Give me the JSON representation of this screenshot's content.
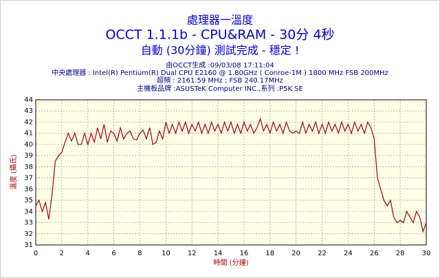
{
  "chart_data": {
    "type": "line",
    "title": "處理器一溫度",
    "subtitle": "OCCT 1.1.1b - CPU&RAM - 30分 4秒",
    "status": "自動 (30分鐘) 測試完成 - 穩定 !",
    "info": [
      "由OCCT生成 :09/03/08 17:11:04",
      "中央處理器 : Intel(R) Pentium(R) Dual CPU E2160 @ 1.80GHz ( Conroe-1M ) 1800 MHz FSB 200MHz",
      "超頻 : 2161.59 MHz ; FSB 240.17MHz",
      "主機板品牌 :ASUSTeK Computer INC.,系列 :P5K SE"
    ],
    "xlabel": "時間 (分鐘)",
    "ylabel": "溫度 (攝氏)",
    "color": "#a00000",
    "grid": true,
    "xlim": [
      0,
      30
    ],
    "xticks": [
      0,
      2,
      4,
      6,
      8,
      10,
      12,
      14,
      16,
      18,
      20,
      22,
      24,
      26,
      28,
      30
    ],
    "ylim": [
      31,
      44
    ],
    "yticks": [
      31,
      32,
      33,
      34,
      35,
      36,
      37,
      38,
      39,
      40,
      41,
      42,
      43,
      44
    ],
    "x": [
      0,
      0.25,
      0.5,
      0.75,
      1,
      1.25,
      1.5,
      1.75,
      2,
      2.25,
      2.5,
      2.75,
      3,
      3.25,
      3.5,
      3.75,
      4,
      4.25,
      4.5,
      4.75,
      5,
      5.25,
      5.5,
      5.75,
      6,
      6.25,
      6.5,
      6.75,
      7,
      7.25,
      7.5,
      7.75,
      8,
      8.25,
      8.5,
      8.75,
      9,
      9.25,
      9.5,
      9.75,
      10,
      10.25,
      10.5,
      10.75,
      11,
      11.25,
      11.5,
      11.75,
      12,
      12.25,
      12.5,
      12.75,
      13,
      13.25,
      13.5,
      13.75,
      14,
      14.25,
      14.5,
      14.75,
      15,
      15.25,
      15.5,
      15.75,
      16,
      16.25,
      16.5,
      16.75,
      17,
      17.25,
      17.5,
      17.75,
      18,
      18.25,
      18.5,
      18.75,
      19,
      19.25,
      19.5,
      19.75,
      20,
      20.25,
      20.5,
      20.75,
      21,
      21.25,
      21.5,
      21.75,
      22,
      22.25,
      22.5,
      22.75,
      23,
      23.25,
      23.5,
      23.75,
      24,
      24.25,
      24.5,
      24.75,
      25,
      25.25,
      25.5,
      25.75,
      26,
      26.25,
      26.5,
      26.75,
      27,
      27.25,
      27.5,
      27.75,
      28,
      28.25,
      28.5,
      28.75,
      29,
      29.25,
      29.5,
      29.75,
      30
    ],
    "values": [
      34.5,
      35,
      34,
      34.8,
      33.3,
      35.5,
      38.5,
      39,
      39.3,
      40.2,
      41,
      40.3,
      41,
      40,
      40,
      41,
      40,
      41,
      40.2,
      41.5,
      40.5,
      41.8,
      40.2,
      41.2,
      41,
      40.3,
      41.5,
      40.5,
      41,
      41.2,
      40.5,
      40.4,
      41,
      41.3,
      40.5,
      41.5,
      40,
      40.2,
      41.2,
      40.5,
      42,
      41,
      41.8,
      41,
      42,
      41.2,
      42,
      41,
      41.8,
      41.2,
      42,
      41,
      41.8,
      41,
      42,
      41.2,
      41.8,
      41,
      42,
      41.2,
      42,
      41,
      41.8,
      41,
      42,
      41.2,
      41.8,
      41,
      41.5,
      42.3,
      41.2,
      41.8,
      41,
      42,
      41.2,
      41.8,
      41,
      42,
      41.2,
      41,
      41.2,
      41,
      42,
      41,
      41.8,
      41.2,
      42,
      41,
      41.8,
      41,
      42,
      41.2,
      41.8,
      41,
      42,
      41.2,
      41.8,
      41,
      42,
      41.2,
      41.8,
      41,
      42,
      41.5,
      40.5,
      37,
      36,
      35,
      34.5,
      35,
      33.5,
      33,
      33.2,
      33,
      34,
      33.5,
      33,
      34,
      33.5,
      32.2,
      33
    ]
  }
}
